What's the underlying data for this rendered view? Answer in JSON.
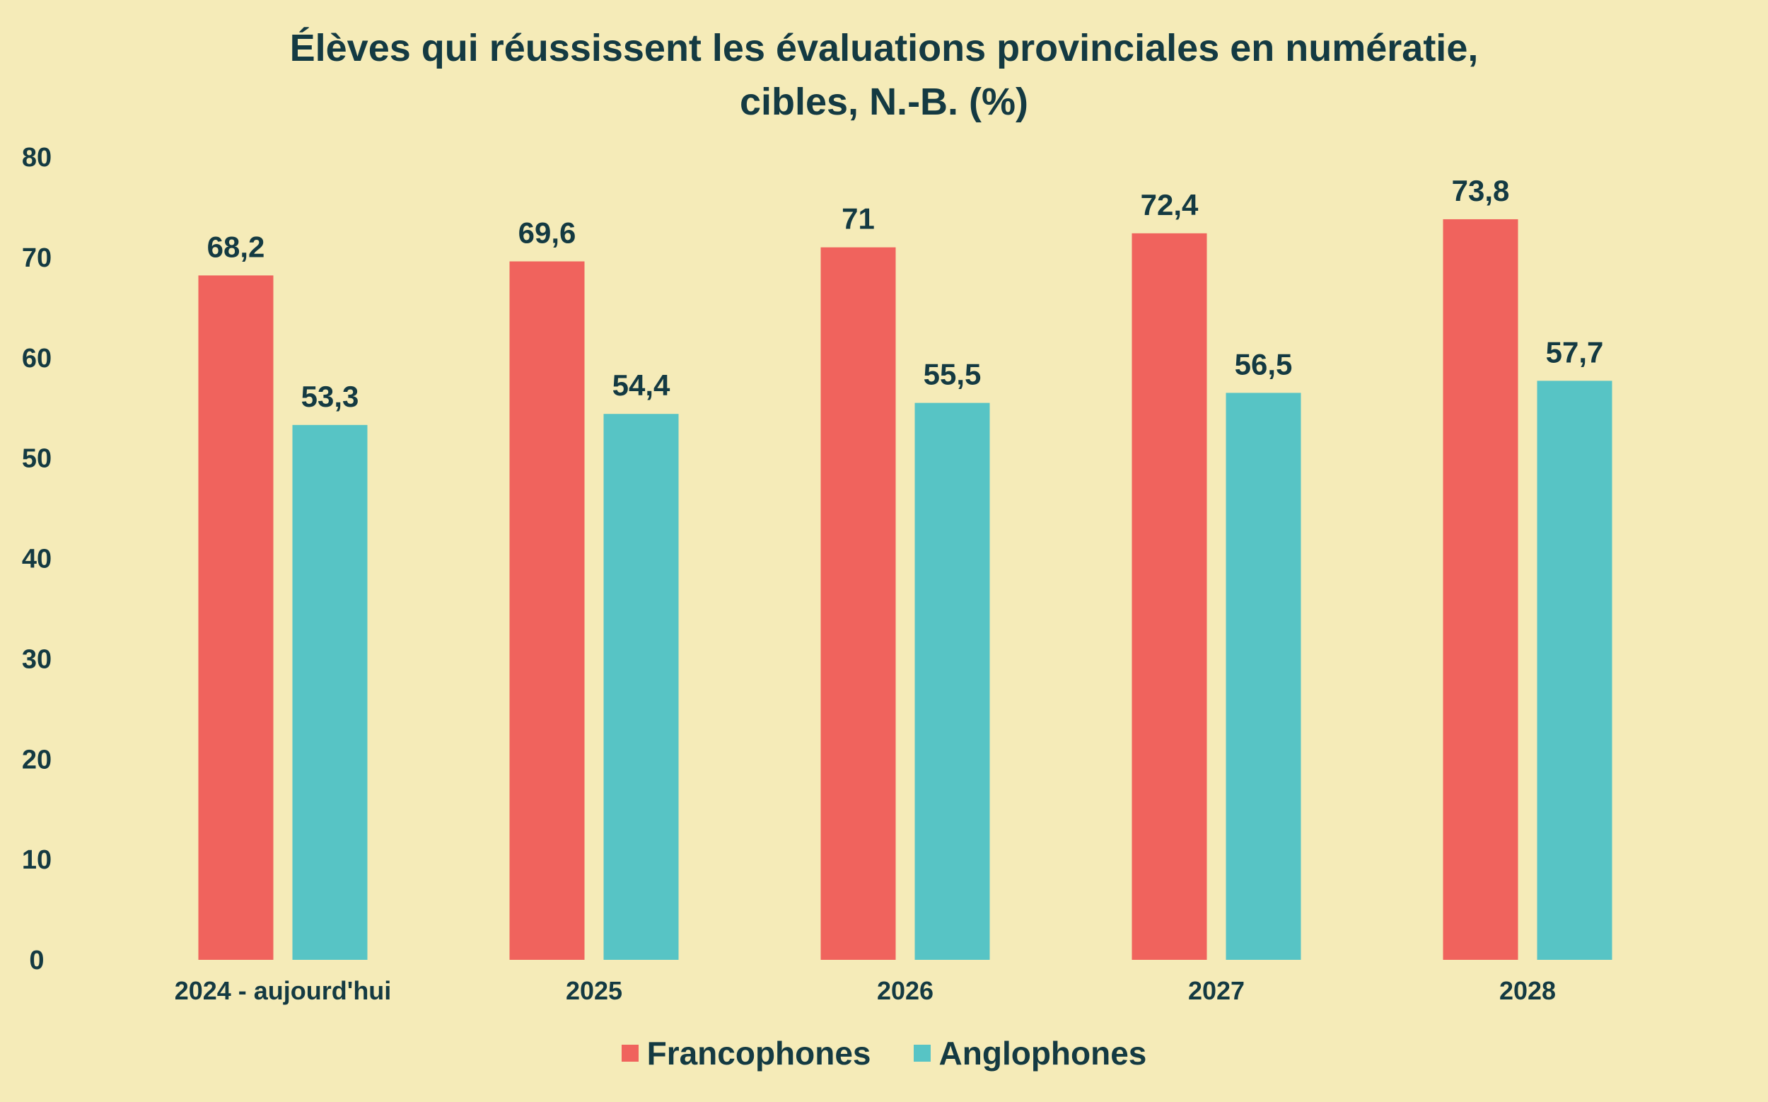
{
  "chart_data": {
    "type": "bar",
    "title_lines": [
      "Élèves qui réussissent les évaluations provinciales en numératie,",
      "cibles, N.-B. (%)"
    ],
    "categories": [
      "2024 - aujourd'hui",
      "2025",
      "2026",
      "2027",
      "2028"
    ],
    "series": [
      {
        "name": "Francophones",
        "color": "#f0635d",
        "values": [
          68.2,
          69.6,
          71,
          72.4,
          73.8
        ],
        "labels": [
          "68,2",
          "69,6",
          "71",
          "72,4",
          "73,8"
        ]
      },
      {
        "name": "Anglophones",
        "color": "#57c4c5",
        "values": [
          53.3,
          54.4,
          55.5,
          56.5,
          57.7
        ],
        "labels": [
          "53,3",
          "54,4",
          "55,5",
          "56,5",
          "57,7"
        ]
      }
    ],
    "ylim": [
      0,
      80
    ],
    "yticks": [
      0,
      10,
      20,
      30,
      40,
      50,
      60,
      70,
      80
    ],
    "xlabel": "",
    "ylabel": "",
    "grid": false,
    "legend_position": "bottom-center"
  }
}
